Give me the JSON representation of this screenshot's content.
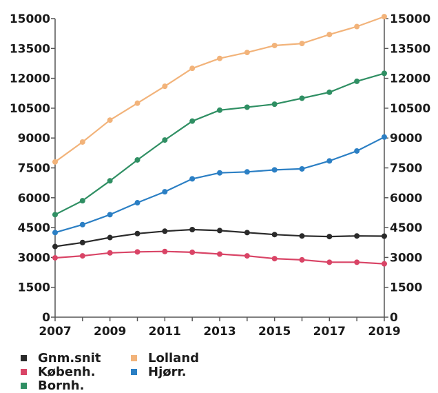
{
  "chart_data": {
    "type": "line",
    "x": [
      2007,
      2008,
      2009,
      2010,
      2011,
      2012,
      2013,
      2014,
      2015,
      2016,
      2017,
      2018,
      2019
    ],
    "x_tick_labels": [
      "2007",
      "2009",
      "2011",
      "2013",
      "2015",
      "2017",
      "2019"
    ],
    "y_tick_labels": [
      "0",
      "1500",
      "3000",
      "4500",
      "6000",
      "7500",
      "9000",
      "10500",
      "12000",
      "13500",
      "15000"
    ],
    "ylim": [
      0,
      15000
    ],
    "xlim": [
      2007,
      2019
    ],
    "grid": false,
    "legend_placement": "bottom-left",
    "series": [
      {
        "name": "Gnm.snit",
        "color": "#2a2a2a",
        "values": [
          3550,
          3750,
          4000,
          4200,
          4320,
          4400,
          4350,
          4250,
          4150,
          4080,
          4050,
          4080,
          4070
        ]
      },
      {
        "name": "Københ.",
        "color": "#d94466",
        "values": [
          2980,
          3080,
          3230,
          3280,
          3300,
          3260,
          3170,
          3080,
          2940,
          2880,
          2760,
          2760,
          2680
        ]
      },
      {
        "name": "Bornh.",
        "color": "#2f8f63",
        "values": [
          5150,
          5850,
          6850,
          7900,
          8900,
          9850,
          10400,
          10550,
          10700,
          11000,
          11300,
          11850,
          12250
        ]
      },
      {
        "name": "Lolland",
        "color": "#f2b37a",
        "values": [
          7800,
          8800,
          9900,
          10750,
          11600,
          12500,
          13000,
          13300,
          13650,
          13750,
          14200,
          14600,
          15100
        ]
      },
      {
        "name": "Hjørr.",
        "color": "#2b7fc4",
        "values": [
          4250,
          4650,
          5150,
          5750,
          6300,
          6950,
          7250,
          7300,
          7400,
          7450,
          7850,
          8350,
          9050
        ]
      }
    ]
  }
}
